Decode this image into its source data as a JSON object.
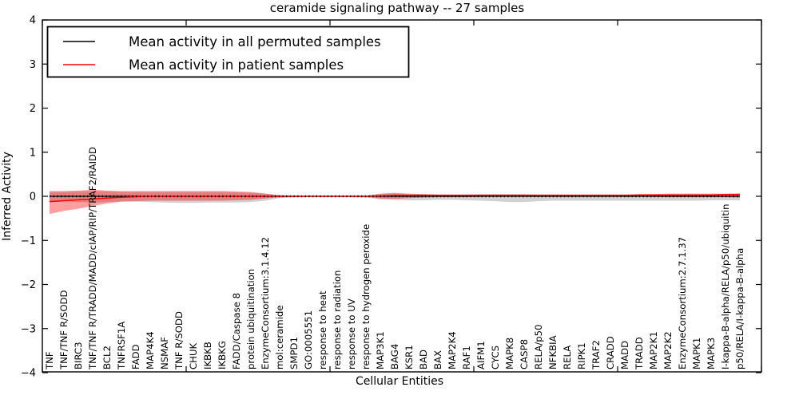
{
  "window": {
    "title": "ceramide signaling pathway -- 27 samples"
  },
  "chart_data": {
    "type": "line",
    "title": "ceramide signaling pathway -- 27 samples",
    "xlabel": "Cellular Entities",
    "ylabel": "Inferred Activity",
    "ylim": [
      -4,
      4
    ],
    "yticks": [
      -4,
      -3,
      -2,
      -1,
      0,
      1,
      2,
      3,
      4
    ],
    "xlim": [
      0,
      50
    ],
    "xticks": [
      0,
      10,
      20,
      30,
      40,
      50
    ],
    "grid": false,
    "legend_position": "upper-left",
    "legend": [
      {
        "label": "Mean activity in all permuted samples",
        "color": "#000000"
      },
      {
        "label": "Mean activity in patient samples",
        "color": "#ff0000"
      }
    ],
    "categories": [
      "TNF",
      "TNF/TNF R/SODD",
      "BIRC3",
      "TNF/TNF R/TRADD/MADD/cIAP/RIP/TRAF2/RAIDD",
      "BCL2",
      "TNFRSF1A",
      "FADD",
      "MAP4K4",
      "NSMAF",
      "TNF R/SODD",
      "CHUK",
      "IKBKB",
      "IKBKG",
      "FADD/Caspase 8",
      "protein ubiquitination",
      "EnzymeConsortium:3.1.4.12",
      "mol:ceramide",
      "SMPD1",
      "GO:0005551",
      "response to heat",
      "response to radiation",
      "response to UV",
      "response to hydrogen peroxide",
      "MAP3K1",
      "BAG4",
      "KSR1",
      "BAD",
      "BAX",
      "MAP2K4",
      "RAF1",
      "AIFM1",
      "CYCS",
      "MAPK8",
      "CASP8",
      "RELA/p50",
      "NFKBIA",
      "RELA",
      "RIPK1",
      "TRAF2",
      "CRADD",
      "MADD",
      "TRADD",
      "MAP2K1",
      "MAP2K2",
      "EnzymeConsortium:2.7.1.37",
      "MAPK1",
      "MAPK3",
      "I-kappa-B-alpha/RELA/p50/ubiquitin",
      "p50/RELA/I-kappa-B-alpha"
    ],
    "series": [
      {
        "name": "Mean activity in all permuted samples",
        "color": "#000000",
        "values": [
          0,
          0,
          0,
          0,
          0,
          0,
          0,
          0,
          0,
          0,
          0,
          0,
          0,
          0,
          0,
          0,
          0,
          0,
          0,
          0,
          0,
          0,
          0,
          0,
          0,
          0,
          0,
          0,
          0,
          0,
          0,
          0,
          0,
          0,
          0,
          0,
          0,
          0,
          0,
          0,
          0,
          0,
          0,
          0,
          0,
          0,
          0,
          0,
          0
        ]
      },
      {
        "name": "Mean activity in patient samples",
        "color": "#ff0000",
        "values": [
          -0.12,
          -0.1,
          -0.08,
          -0.06,
          -0.04,
          -0.02,
          -0.01,
          0,
          0,
          0,
          0,
          0,
          0,
          0,
          0,
          0,
          0,
          0,
          0,
          0,
          0,
          0,
          0,
          0.01,
          0.02,
          0.02,
          0.02,
          0.02,
          0.02,
          0.02,
          0.02,
          0.02,
          0.02,
          0.02,
          0.02,
          0.02,
          0.02,
          0.02,
          0.02,
          0.02,
          0.02,
          0.03,
          0.03,
          0.03,
          0.03,
          0.03,
          0.03,
          0.04,
          0.04
        ]
      }
    ],
    "bands": [
      {
        "name": "std of activity in all permuted samples",
        "color": "#000000",
        "opacity": 0.18,
        "upper": [
          0.1,
          0.1,
          0.11,
          0.12,
          0.11,
          0.1,
          0.1,
          0.1,
          0.1,
          0.1,
          0.1,
          0.1,
          0.1,
          0.09,
          0.08,
          0.06,
          0.03,
          0.02,
          0.01,
          0.01,
          0.01,
          0.01,
          0.02,
          0.05,
          0.06,
          0.05,
          0.05,
          0.04,
          0.04,
          0.04,
          0.05,
          0.05,
          0.05,
          0.05,
          0.04,
          0.04,
          0.04,
          0.04,
          0.04,
          0.04,
          0.04,
          0.04,
          0.04,
          0.04,
          0.04,
          0.04,
          0.04,
          0.04,
          0.05
        ],
        "lower": [
          -0.12,
          -0.12,
          -0.13,
          -0.14,
          -0.13,
          -0.12,
          -0.12,
          -0.13,
          -0.14,
          -0.15,
          -0.15,
          -0.14,
          -0.14,
          -0.14,
          -0.13,
          -0.1,
          -0.04,
          -0.02,
          -0.01,
          -0.01,
          -0.01,
          -0.02,
          -0.03,
          -0.07,
          -0.08,
          -0.09,
          -0.09,
          -0.08,
          -0.08,
          -0.09,
          -0.1,
          -0.11,
          -0.13,
          -0.13,
          -0.11,
          -0.1,
          -0.1,
          -0.1,
          -0.1,
          -0.1,
          -0.1,
          -0.1,
          -0.1,
          -0.1,
          -0.1,
          -0.1,
          -0.09,
          -0.09,
          -0.09
        ]
      },
      {
        "name": "std of activity in patient samples",
        "color": "#ff0000",
        "opacity": 0.38,
        "upper": [
          0.12,
          0.12,
          0.13,
          0.15,
          0.13,
          0.12,
          0.12,
          0.12,
          0.12,
          0.12,
          0.12,
          0.12,
          0.12,
          0.11,
          0.1,
          0.06,
          0.02,
          0.01,
          0.01,
          0.01,
          0.01,
          0.01,
          0.01,
          0.06,
          0.08,
          0.06,
          0.05,
          0.04,
          0.04,
          0.04,
          0.04,
          0.04,
          0.04,
          0.04,
          0.04,
          0.04,
          0.04,
          0.04,
          0.04,
          0.04,
          0.04,
          0.05,
          0.05,
          0.06,
          0.06,
          0.06,
          0.06,
          0.06,
          0.07
        ],
        "lower": [
          -0.4,
          -0.33,
          -0.28,
          -0.22,
          -0.16,
          -0.12,
          -0.11,
          -0.1,
          -0.1,
          -0.1,
          -0.1,
          -0.1,
          -0.1,
          -0.09,
          -0.08,
          -0.05,
          -0.02,
          -0.01,
          -0.01,
          -0.01,
          -0.01,
          -0.01,
          -0.01,
          -0.05,
          -0.06,
          -0.04,
          -0.03,
          -0.02,
          -0.02,
          -0.02,
          -0.01,
          -0.01,
          -0.01,
          -0.01,
          -0.01,
          -0.01,
          -0.01,
          -0.01,
          -0.01,
          -0.01,
          -0.01,
          -0.01,
          -0.01,
          -0.02,
          -0.02,
          -0.02,
          -0.02,
          -0.02,
          -0.03
        ]
      }
    ]
  },
  "colors": {
    "background": "#ffffff",
    "axis": "#000000",
    "permuted_line": "#000000",
    "patient_line": "#ff0000"
  }
}
